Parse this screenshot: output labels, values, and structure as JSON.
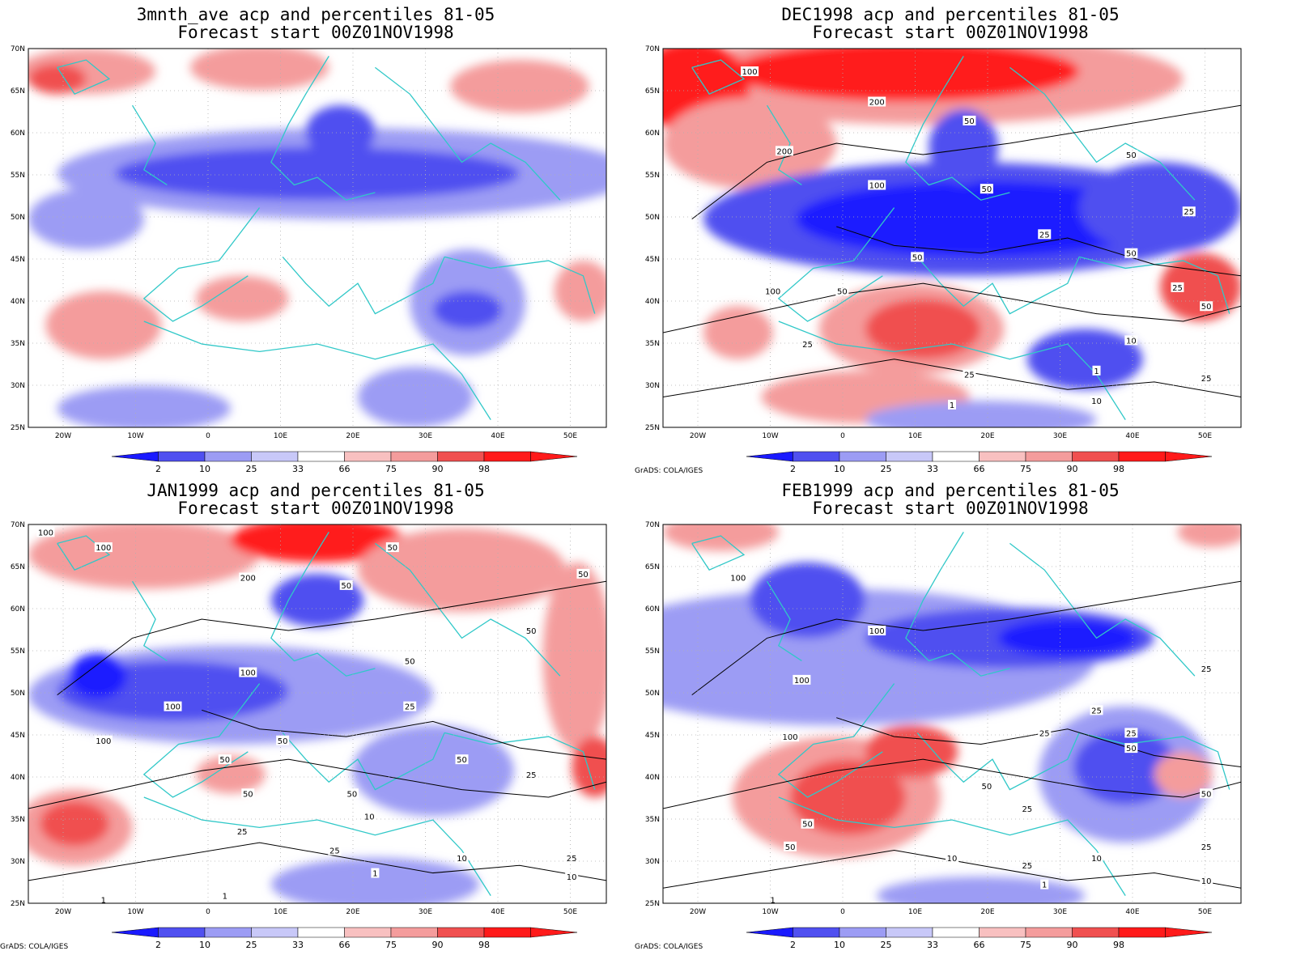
{
  "palette": {
    "blue_dark": "#1a1aff",
    "blue_mid": "#5050f0",
    "blue_light": "#9c9cf4",
    "blue_pale": "#c8c8f8",
    "red_pale": "#f8c0c0",
    "red_light": "#f49c9c",
    "red_mid": "#f05050",
    "red_dark": "#ff1a1a",
    "coast": "#30c8c8",
    "contour": "#000000"
  },
  "axes": {
    "lon_labels": [
      "20W",
      "10W",
      "0",
      "10E",
      "20E",
      "30E",
      "40E",
      "50E"
    ],
    "lat_labels": [
      "70N",
      "65N",
      "60N",
      "55N",
      "50N",
      "45N",
      "40N",
      "35N",
      "30N",
      "25N"
    ]
  },
  "colorbar": {
    "labels": [
      "2",
      "10",
      "25",
      "33",
      "66",
      "75",
      "90",
      "98"
    ]
  },
  "panels": [
    {
      "title1": "3mnth_ave acp and percentiles 81-05",
      "title2": "Forecast start 00Z01NOV1998",
      "credit": ""
    },
    {
      "title1": "DEC1998 acp and percentiles 81-05",
      "title2": "Forecast start 00Z01NOV1998",
      "credit": "GrADS: COLA/IGES",
      "contour_labels": [
        "100",
        "200",
        "200",
        "50",
        "100",
        "50",
        "50",
        "25",
        "25",
        "50",
        "50",
        "100",
        "50",
        "25",
        "50",
        "10",
        "25",
        "25",
        "25",
        "1",
        "1",
        "10"
      ]
    },
    {
      "title1": "JAN1999 acp and percentiles 81-05",
      "title2": "Forecast start 00Z01NOV1998",
      "credit": "GrADS: COLA/IGES",
      "contour_labels": [
        "100",
        "100",
        "200",
        "50",
        "50",
        "50",
        "50",
        "100",
        "100",
        "50",
        "25",
        "50",
        "100",
        "50",
        "50",
        "25",
        "50",
        "50",
        "10",
        "25",
        "25",
        "10",
        "25",
        "10",
        "1",
        "1",
        "1"
      ]
    },
    {
      "title1": "FEB1999 acp and percentiles 81-05",
      "title2": "Forecast start 00Z01NOV1998",
      "credit": "GrADS: COLA/IGES",
      "contour_labels": [
        "100",
        "100",
        "100",
        "25",
        "25",
        "25",
        "50",
        "25",
        "100",
        "50",
        "50",
        "50",
        "25",
        "50",
        "25",
        "10",
        "10",
        "25",
        "10",
        "1",
        "1"
      ]
    }
  ]
}
